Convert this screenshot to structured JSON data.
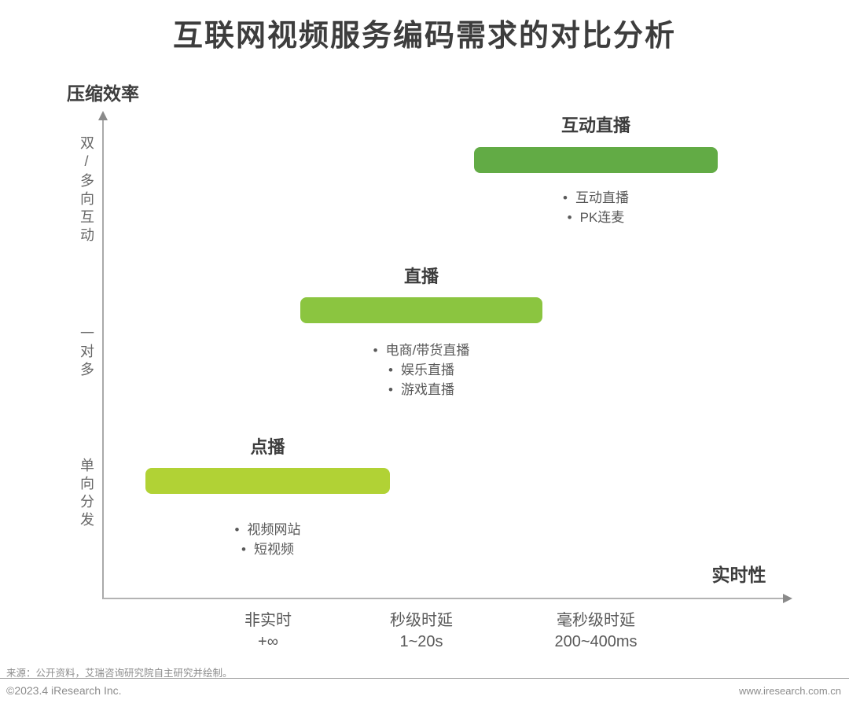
{
  "title": "互联网视频服务编码需求的对比分析",
  "chart_data": {
    "type": "bar",
    "title": "互联网视频服务编码需求的对比分析",
    "xlabel": "实时性",
    "ylabel": "压缩效率",
    "axis_color": "#a9a9a9",
    "grid": false,
    "y_categories": [
      "单向分发",
      "一对多",
      "双/多向互动"
    ],
    "x_categories": [
      {
        "label": "非实时",
        "sub": "+∞"
      },
      {
        "label": "秒级时延",
        "sub": "1~20s"
      },
      {
        "label": "毫秒级时延",
        "sub": "200~400ms"
      }
    ],
    "groups": [
      {
        "name": "点播",
        "x_category": "非实时",
        "y_category": "单向分发",
        "color": "#b1d235",
        "items": [
          "视频网站",
          "短视频"
        ]
      },
      {
        "name": "直播",
        "x_category": "秒级时延",
        "y_category": "一对多",
        "color": "#8bc540",
        "items": [
          "电商/带货直播",
          "娱乐直播",
          "游戏直播"
        ]
      },
      {
        "name": "互动直播",
        "x_category": "毫秒级时延",
        "y_category": "双/多向互动",
        "color": "#62ab45",
        "items": [
          "互动直播",
          "PK连麦"
        ]
      }
    ]
  },
  "footer": {
    "source": "来源：公开资料，艾瑞咨询研究院自主研究并绘制。",
    "copyright": "©2023.4 iResearch Inc.",
    "website": "www.iresearch.com.cn"
  }
}
